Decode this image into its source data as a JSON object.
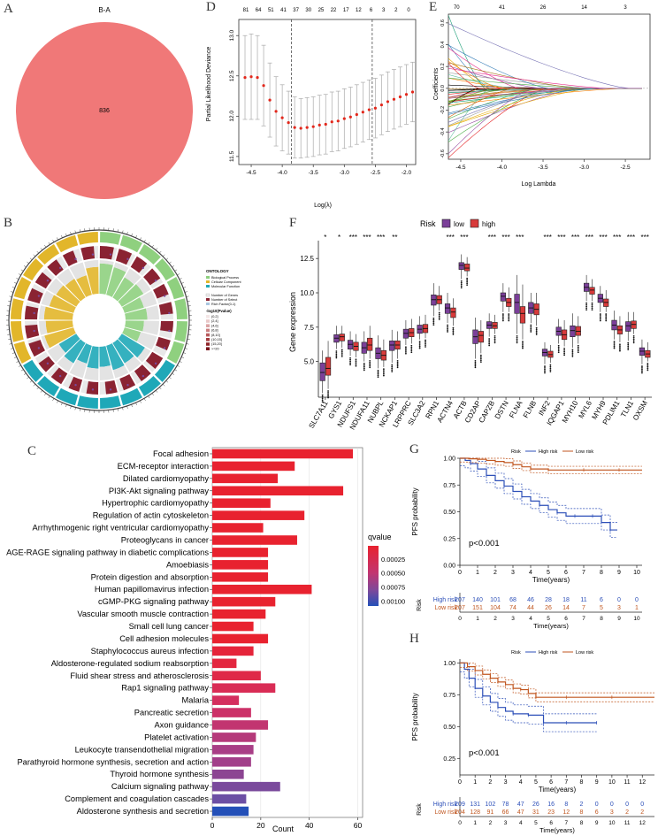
{
  "figure": {
    "panel_labels": {
      "A": "A",
      "B": "B",
      "C": "C",
      "D": "D",
      "E": "E",
      "F": "F",
      "G": "G",
      "H": "H"
    }
  },
  "venn": {
    "title": "B-A",
    "count": "836",
    "color": "#f07878"
  },
  "chart_data": [
    {
      "id": "D",
      "type": "line",
      "title": "",
      "xlabel": "Log(λ)",
      "ylabel": "Partial Likelihood Deviance",
      "top_ticks": [
        "81",
        "64",
        "51",
        "41",
        "37",
        "30",
        "25",
        "22",
        "17",
        "12",
        "6",
        "3",
        "2",
        "0"
      ],
      "xticks": [
        "-4.5",
        "-4.0",
        "-3.5",
        "-3.0",
        "-2.5",
        "-2.0"
      ],
      "yticks": [
        "11.5",
        "12.0",
        "12.5",
        "13.0"
      ],
      "xlim": [
        -4.7,
        -1.85
      ],
      "ylim": [
        11.4,
        13.2
      ],
      "vlines": [
        -3.85,
        -2.55
      ],
      "x": [
        -4.6,
        -4.5,
        -4.4,
        -4.3,
        -4.2,
        -4.1,
        -4.0,
        -3.9,
        -3.8,
        -3.7,
        -3.6,
        -3.5,
        -3.4,
        -3.3,
        -3.2,
        -3.1,
        -3.0,
        -2.9,
        -2.8,
        -2.7,
        -2.6,
        -2.5,
        -2.4,
        -2.3,
        -2.2,
        -2.1,
        -2.0,
        -1.9
      ],
      "mean": [
        12.48,
        12.49,
        12.48,
        12.38,
        12.2,
        12.06,
        11.98,
        11.92,
        11.86,
        11.85,
        11.86,
        11.87,
        11.89,
        11.9,
        11.93,
        11.94,
        11.97,
        11.99,
        12.02,
        12.05,
        12.08,
        12.1,
        12.14,
        12.18,
        12.21,
        12.24,
        12.27,
        12.3
      ],
      "err": [
        0.52,
        0.53,
        0.52,
        0.5,
        0.46,
        0.43,
        0.41,
        0.39,
        0.38,
        0.37,
        0.37,
        0.37,
        0.37,
        0.37,
        0.37,
        0.37,
        0.37,
        0.37,
        0.37,
        0.37,
        0.37,
        0.37,
        0.37,
        0.37,
        0.37,
        0.37,
        0.37,
        0.37
      ]
    },
    {
      "id": "E",
      "type": "line",
      "xlabel": "Log Lambda",
      "ylabel": "Coefficients",
      "top_ticks": [
        "70",
        "41",
        "26",
        "14",
        "3"
      ],
      "xticks": [
        "-4.5",
        "-4.0",
        "-3.5",
        "-3.0",
        "-2.5"
      ],
      "yticks": [
        "-0.6",
        "-0.4",
        "-0.2",
        "0.0",
        "0.2",
        "0.4",
        "0.6"
      ],
      "xlim": [
        -4.65,
        -2.2
      ],
      "ylim": [
        -0.65,
        0.68
      ]
    },
    {
      "id": "F",
      "type": "box",
      "title": "",
      "ylabel": "Gene expression",
      "legend_title": "Risk",
      "legend": [
        {
          "name": "low",
          "color": "#7b3f99"
        },
        {
          "name": "high",
          "color": "#d83a3a"
        }
      ],
      "yticks": [
        "5.0",
        "7.5",
        "10.0",
        "12.5"
      ],
      "ylim": [
        2.4,
        13.8
      ],
      "genes": [
        "SLC7A11",
        "GYS1",
        "NDUFS1",
        "NDUFA11",
        "NUBPL",
        "NCKAP1",
        "LRPPRC",
        "SLC3A2",
        "RPN1",
        "ACTN4",
        "ACTB",
        "CD2AP",
        "CAPZB",
        "DSTN",
        "FLNA",
        "FLNB",
        "INF2",
        "IQGAP1",
        "MYH10",
        "MYL6",
        "MYH9",
        "PDLIM1",
        "TLN1",
        "OXSM"
      ],
      "sig": [
        "*",
        "*",
        "***",
        "***",
        "***",
        "**",
        "",
        "",
        "",
        "***",
        "***",
        "",
        "***",
        "***",
        "***",
        "",
        "***",
        "***",
        "***",
        "***",
        "***",
        "***",
        "***",
        "***"
      ],
      "low": [
        [
          2.7,
          3.6,
          4.2,
          4.9,
          5.8
        ],
        [
          5.9,
          6.4,
          6.7,
          6.95,
          7.6
        ],
        [
          5.4,
          5.9,
          6.25,
          6.55,
          7.2
        ],
        [
          5.0,
          5.6,
          6.0,
          6.4,
          7.2
        ],
        [
          4.5,
          5.2,
          5.6,
          6.0,
          6.9
        ],
        [
          4.9,
          5.8,
          6.2,
          6.5,
          7.3
        ],
        [
          6.2,
          6.7,
          7.05,
          7.35,
          8.0
        ],
        [
          6.6,
          7.05,
          7.35,
          7.65,
          8.3
        ],
        [
          8.3,
          9.1,
          9.5,
          9.85,
          10.7
        ],
        [
          7.8,
          8.5,
          8.9,
          9.2,
          10.0
        ],
        [
          11.0,
          11.7,
          12.0,
          12.2,
          12.8
        ],
        [
          5.2,
          6.3,
          6.8,
          7.3,
          8.2
        ],
        [
          6.8,
          7.4,
          7.65,
          7.9,
          8.5
        ],
        [
          8.6,
          9.4,
          9.75,
          10.0,
          10.7
        ],
        [
          7.0,
          8.5,
          9.3,
          9.9,
          11.3
        ],
        [
          7.8,
          8.5,
          8.9,
          9.3,
          10.0
        ],
        [
          4.8,
          5.4,
          5.65,
          5.9,
          6.4
        ],
        [
          6.3,
          6.9,
          7.2,
          7.5,
          8.1
        ],
        [
          6.0,
          6.8,
          7.25,
          7.6,
          8.5
        ],
        [
          9.4,
          10.1,
          10.4,
          10.7,
          11.3
        ],
        [
          8.6,
          9.3,
          9.6,
          9.9,
          10.5
        ],
        [
          6.6,
          7.3,
          7.65,
          8.0,
          8.7
        ],
        [
          6.5,
          7.2,
          7.6,
          7.9,
          8.6
        ],
        [
          4.8,
          5.45,
          5.75,
          6.0,
          6.6
        ]
      ],
      "high": [
        [
          3.0,
          4.0,
          4.5,
          5.3,
          6.5
        ],
        [
          6.0,
          6.5,
          6.8,
          7.0,
          7.6
        ],
        [
          5.3,
          5.8,
          6.1,
          6.4,
          7.0
        ],
        [
          5.2,
          5.8,
          6.2,
          6.7,
          7.6
        ],
        [
          4.6,
          5.1,
          5.45,
          5.8,
          6.6
        ],
        [
          5.2,
          5.9,
          6.2,
          6.5,
          7.2
        ],
        [
          6.3,
          6.8,
          7.1,
          7.4,
          8.1
        ],
        [
          6.7,
          7.1,
          7.4,
          7.7,
          8.4
        ],
        [
          8.7,
          9.2,
          9.5,
          9.8,
          10.5
        ],
        [
          7.6,
          8.2,
          8.6,
          8.9,
          9.6
        ],
        [
          11.2,
          11.6,
          11.8,
          12.1,
          12.6
        ],
        [
          5.6,
          6.4,
          6.9,
          7.2,
          8.0
        ],
        [
          7.0,
          7.4,
          7.6,
          7.85,
          8.4
        ],
        [
          8.6,
          9.0,
          9.3,
          9.6,
          10.4
        ],
        [
          6.6,
          7.8,
          8.5,
          9.0,
          10.6
        ],
        [
          7.6,
          8.4,
          8.8,
          9.2,
          10.0
        ],
        [
          4.9,
          5.3,
          5.5,
          5.75,
          6.2
        ],
        [
          6.1,
          6.6,
          6.95,
          7.3,
          8.0
        ],
        [
          6.3,
          6.9,
          7.2,
          7.55,
          8.3
        ],
        [
          9.4,
          9.9,
          10.2,
          10.4,
          11.0
        ],
        [
          8.6,
          9.0,
          9.3,
          9.55,
          10.2
        ],
        [
          6.4,
          7.0,
          7.3,
          7.6,
          8.3
        ],
        [
          7.0,
          7.4,
          7.7,
          7.95,
          8.6
        ],
        [
          5.0,
          5.3,
          5.55,
          5.8,
          6.4
        ]
      ]
    },
    {
      "id": "C",
      "type": "bar",
      "orientation": "horizontal",
      "xlabel": "Count",
      "legend_title": "qvalue",
      "legend_ticks": [
        "0.00025",
        "0.00050",
        "0.00075",
        "0.00100"
      ],
      "xticks": [
        "0",
        "20",
        "40",
        "60"
      ],
      "xlim": [
        0,
        62
      ],
      "categories": [
        "Focal adhesion",
        "ECM-receptor interaction",
        "Dilated cardiomyopathy",
        "PI3K-Akt signaling pathway",
        "Hypertrophic cardiomyopathy",
        "Regulation of actin cytoskeleton",
        "Arrhythmogenic right ventricular cardiomyopathy",
        "Proteoglycans in cancer",
        "AGE-RAGE signaling pathway in diabetic complications",
        "Amoebiasis",
        "Protein digestion and absorption",
        "Human papillomavirus infection",
        "cGMP-PKG signaling pathway",
        "Vascular smooth muscle contraction",
        "Small cell lung cancer",
        "Cell adhesion molecules",
        "Staphylococcus aureus infection",
        "Aldosterone-regulated sodium reabsorption",
        "Fluid shear stress and atherosclerosis",
        "Rap1 signaling pathway",
        "Malaria",
        "Pancreatic secretion",
        "Axon guidance",
        "Platelet activation",
        "Leukocyte transendothelial migration",
        "Parathyroid hormone synthesis, secretion and action",
        "Thyroid hormone synthesis",
        "Calcium signaling pathway",
        "Complement and coagulation cascades",
        "Aldosterone synthesis and secretion"
      ],
      "values": [
        58,
        34,
        27,
        54,
        24,
        38,
        21,
        35,
        23,
        23,
        23,
        41,
        26,
        22,
        17,
        23,
        17,
        10,
        20,
        26,
        11,
        16,
        23,
        18,
        17,
        16,
        13,
        28,
        14,
        15
      ],
      "colors": [
        "#e8222f",
        "#e8222f",
        "#e8222f",
        "#e8222f",
        "#e8222f",
        "#e8222f",
        "#e8222f",
        "#e8222f",
        "#e8222f",
        "#e8222f",
        "#e8222f",
        "#e8222f",
        "#e8222f",
        "#e8222f",
        "#e8222f",
        "#e8222f",
        "#e5243a",
        "#e3263f",
        "#df2948",
        "#d92c55",
        "#d42e5e",
        "#cc3168",
        "#c23570",
        "#b53a7a",
        "#a83e86",
        "#a23f8a",
        "#8c4592",
        "#7a4a9c",
        "#6c4fa4",
        "#2450b8"
      ]
    },
    {
      "id": "G",
      "type": "line",
      "subtype": "kaplan-meier",
      "xlabel": "Time(years)",
      "ylabel": "PFS probability",
      "pvalue": "p<0.001",
      "legend_title": "Risk",
      "legend": [
        {
          "name": "High risk",
          "color": "#2c4fb8"
        },
        {
          "name": "Low risk",
          "color": "#c0561f"
        }
      ],
      "xticks": [
        "0",
        "1",
        "2",
        "3",
        "4",
        "5",
        "6",
        "7",
        "8",
        "9",
        "10"
      ],
      "yticks": [
        "0.00",
        "0.25",
        "0.50",
        "0.75",
        "1.00"
      ],
      "xlim": [
        0,
        10.3
      ],
      "ylim": [
        0,
        1
      ],
      "high_x": [
        0,
        0.3,
        0.6,
        1,
        1.5,
        2,
        2.5,
        3,
        3.5,
        4,
        4.5,
        5,
        5.5,
        6,
        6.5,
        7,
        7.5,
        8,
        8.5,
        8.9
      ],
      "high_y": [
        1.0,
        0.98,
        0.95,
        0.9,
        0.84,
        0.79,
        0.74,
        0.69,
        0.64,
        0.6,
        0.56,
        0.52,
        0.49,
        0.46,
        0.46,
        0.46,
        0.46,
        0.4,
        0.33,
        0.33
      ],
      "low_x": [
        0,
        0.5,
        1,
        1.5,
        2,
        2.5,
        3,
        3.5,
        4,
        4.5,
        5,
        6,
        7,
        8,
        9,
        10.3
      ],
      "low_y": [
        1.0,
        0.995,
        0.99,
        0.98,
        0.97,
        0.96,
        0.94,
        0.92,
        0.9,
        0.9,
        0.89,
        0.89,
        0.89,
        0.89,
        0.89,
        0.89
      ],
      "risk_table_title": "Risk",
      "risk_rows": [
        {
          "label": "High risk",
          "color": "#2c4fb8",
          "values": [
            "207",
            "140",
            "101",
            "68",
            "46",
            "28",
            "18",
            "11",
            "6",
            "0",
            "0"
          ]
        },
        {
          "label": "Low risk",
          "color": "#c0561f",
          "values": [
            "207",
            "151",
            "104",
            "74",
            "44",
            "26",
            "14",
            "7",
            "5",
            "3",
            "1"
          ]
        }
      ]
    },
    {
      "id": "H",
      "type": "line",
      "subtype": "kaplan-meier",
      "xlabel": "Time(years)",
      "ylabel": "PFS probability",
      "pvalue": "p<0.001",
      "legend_title": "Risk",
      "legend": [
        {
          "name": "High risk",
          "color": "#2c4fb8"
        },
        {
          "name": "Low risk",
          "color": "#c0561f"
        }
      ],
      "xticks": [
        "0",
        "1",
        "2",
        "3",
        "4",
        "5",
        "6",
        "7",
        "8",
        "9",
        "10",
        "11",
        "12"
      ],
      "yticks": [
        "0.25",
        "0.50",
        "0.75",
        "1.00"
      ],
      "xlim": [
        0,
        12.8
      ],
      "ylim": [
        0.12,
        1.03
      ],
      "high_x": [
        0,
        0.3,
        0.6,
        1,
        1.5,
        2,
        2.5,
        3,
        3.5,
        4,
        4.5,
        5,
        5.5,
        6,
        7,
        8,
        9
      ],
      "high_y": [
        1.0,
        0.95,
        0.88,
        0.8,
        0.74,
        0.69,
        0.65,
        0.62,
        0.6,
        0.6,
        0.59,
        0.59,
        0.53,
        0.53,
        0.53,
        0.53,
        0.53
      ],
      "low_x": [
        0,
        0.5,
        1,
        1.5,
        2,
        2.5,
        3,
        3.5,
        4,
        4.5,
        5,
        6,
        7,
        8,
        10,
        12.8
      ],
      "low_y": [
        1.0,
        0.97,
        0.94,
        0.91,
        0.88,
        0.85,
        0.83,
        0.8,
        0.79,
        0.76,
        0.73,
        0.73,
        0.73,
        0.73,
        0.73,
        0.73
      ],
      "risk_table_title": "Risk",
      "risk_rows": [
        {
          "label": "High risk",
          "color": "#2c4fb8",
          "values": [
            "209",
            "131",
            "102",
            "78",
            "47",
            "26",
            "16",
            "8",
            "2",
            "0",
            "0",
            "0",
            "0"
          ]
        },
        {
          "label": "Low risk",
          "color": "#c0561f",
          "values": [
            "204",
            "128",
            "91",
            "66",
            "47",
            "31",
            "23",
            "12",
            "8",
            "6",
            "3",
            "2",
            "2"
          ]
        }
      ]
    }
  ],
  "go_circle": {
    "legend_title": "ONTOLOGY",
    "legend_items": [
      {
        "name": "Biological Process",
        "color": "#8fd07f"
      },
      {
        "name": "Cellular Component",
        "color": "#e2b62a"
      },
      {
        "name": "Molecular Function",
        "color": "#1fa8b8"
      }
    ],
    "legend_items2": [
      "Number of Genes",
      "Number of Select",
      "Rich Factor(0-1)"
    ],
    "legend_title2": "-log10(Pvalue)",
    "legend_bins": [
      "(0,2]",
      "(2,4]",
      "(4,6]",
      "(6,8]",
      "(8,10]",
      "(10,15]",
      "(15,20]",
      ">=20"
    ]
  }
}
